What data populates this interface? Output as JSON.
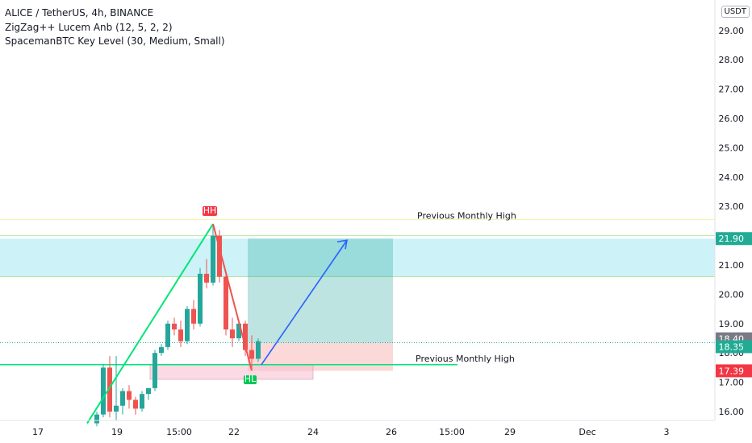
{
  "header": {
    "title": "ALICE / TetherUS, 4h, BINANCE",
    "indicator1": "ZigZag++ Lucem Anb (12, 5, 2, 2)",
    "indicator2": "SpacemanBTC Key Level (30, Medium, Small)"
  },
  "currency": "USDT",
  "labels": {
    "prev_monthly_high": "Previous Monthly High",
    "prev_monthly_high_faded": "Previous Monthly High",
    "faded_small": "",
    "hh": "HH",
    "hl": "HL"
  },
  "price_tags": [
    {
      "text": "21.90",
      "value": 21.9,
      "color": "#22ab94"
    },
    {
      "text": "18.40",
      "value": 18.4,
      "color": "#787b86"
    },
    {
      "text": "18.35",
      "value": 18.35,
      "color": "#22ab94"
    },
    {
      "text": "17.39",
      "value": 17.39,
      "color": "#f23645"
    }
  ],
  "colors": {
    "up": "#26a69a",
    "down": "#ef5350",
    "zigzag_up": "#00e676",
    "zigzag_down": "#ef5350",
    "arrow": "#2962ff",
    "key_level": "#00e676",
    "zone": "#b2ebf2"
  },
  "chart_data": {
    "type": "candlestick",
    "ylim": [
      15.6,
      29.6
    ],
    "y_ticks": [
      "16.00",
      "17.00",
      "18.00",
      "19.00",
      "20.00",
      "21.00",
      "22.00",
      "23.00",
      "24.00",
      "25.00",
      "26.00",
      "27.00",
      "28.00",
      "29.00"
    ],
    "x_ticks": [
      "17",
      "19",
      "15:00",
      "22",
      "24",
      "26",
      "15:00",
      "29",
      "Dec",
      "3"
    ],
    "candles": [
      {
        "o": 15.6,
        "h": 16.0,
        "l": 15.5,
        "c": 15.9
      },
      {
        "o": 15.9,
        "h": 17.6,
        "l": 15.8,
        "c": 17.5
      },
      {
        "o": 17.5,
        "h": 17.9,
        "l": 15.8,
        "c": 16.0
      },
      {
        "o": 16.0,
        "h": 17.9,
        "l": 15.7,
        "c": 16.2
      },
      {
        "o": 16.2,
        "h": 16.8,
        "l": 15.9,
        "c": 16.7
      },
      {
        "o": 16.7,
        "h": 16.9,
        "l": 16.1,
        "c": 16.4
      },
      {
        "o": 16.4,
        "h": 16.5,
        "l": 15.9,
        "c": 16.1
      },
      {
        "o": 16.1,
        "h": 16.7,
        "l": 16.0,
        "c": 16.6
      },
      {
        "o": 16.6,
        "h": 16.8,
        "l": 16.4,
        "c": 16.8
      },
      {
        "o": 16.8,
        "h": 18.1,
        "l": 16.7,
        "c": 18.0
      },
      {
        "o": 18.0,
        "h": 18.3,
        "l": 17.9,
        "c": 18.2
      },
      {
        "o": 18.2,
        "h": 19.1,
        "l": 18.1,
        "c": 19.0
      },
      {
        "o": 19.0,
        "h": 19.2,
        "l": 18.6,
        "c": 18.8
      },
      {
        "o": 18.8,
        "h": 19.1,
        "l": 18.2,
        "c": 18.4
      },
      {
        "o": 18.4,
        "h": 19.6,
        "l": 18.3,
        "c": 19.5
      },
      {
        "o": 19.5,
        "h": 19.8,
        "l": 18.8,
        "c": 19.0
      },
      {
        "o": 19.0,
        "h": 20.9,
        "l": 18.9,
        "c": 20.7
      },
      {
        "o": 20.7,
        "h": 21.2,
        "l": 20.2,
        "c": 20.4
      },
      {
        "o": 20.4,
        "h": 22.4,
        "l": 20.3,
        "c": 22.0
      },
      {
        "o": 22.0,
        "h": 22.2,
        "l": 20.4,
        "c": 20.6
      },
      {
        "o": 20.6,
        "h": 20.8,
        "l": 18.6,
        "c": 18.8
      },
      {
        "o": 18.8,
        "h": 19.2,
        "l": 18.2,
        "c": 18.5
      },
      {
        "o": 18.5,
        "h": 19.1,
        "l": 18.4,
        "c": 19.0
      },
      {
        "o": 19.0,
        "h": 19.1,
        "l": 17.9,
        "c": 18.1
      },
      {
        "o": 18.1,
        "h": 18.6,
        "l": 17.4,
        "c": 17.8
      },
      {
        "o": 17.8,
        "h": 18.5,
        "l": 17.7,
        "c": 18.4
      }
    ],
    "key_levels": [
      {
        "label": "Previous Monthly High",
        "value": 17.6
      },
      {
        "label": "Previous Monthly High",
        "value": 22.1
      }
    ],
    "zone": {
      "top": 21.9,
      "bottom": 20.6
    },
    "position": {
      "entry": 18.35,
      "target": 21.9,
      "stop": 17.39
    }
  }
}
